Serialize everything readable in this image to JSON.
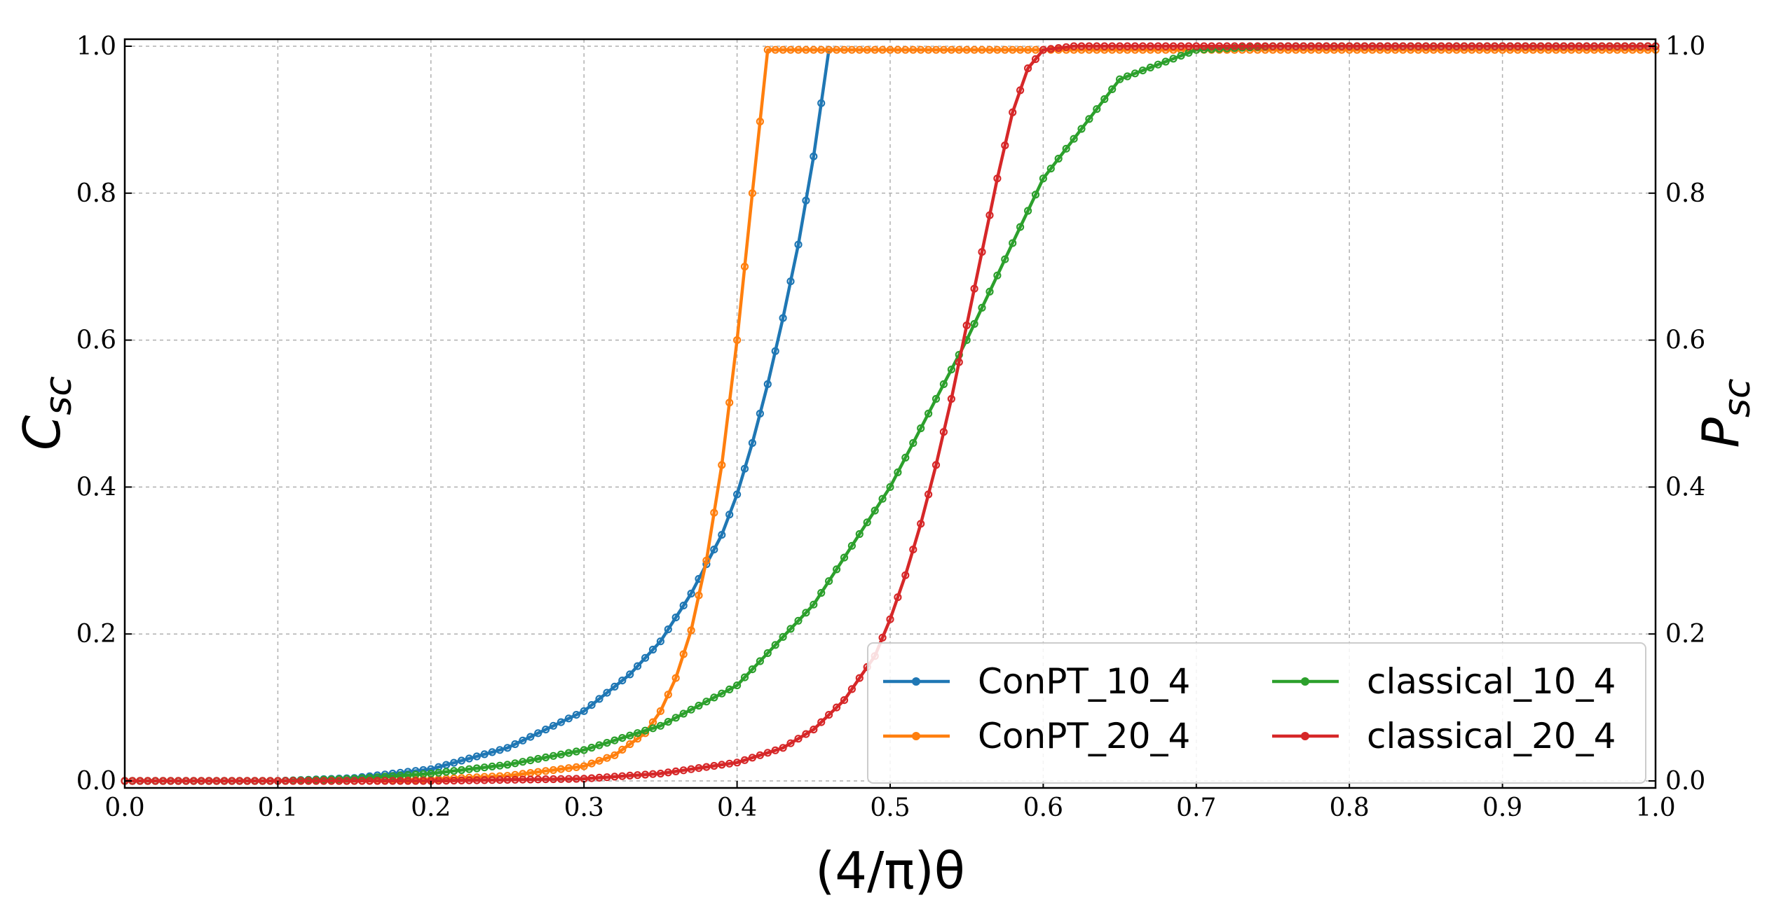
{
  "chart_data": {
    "type": "line",
    "xlabel": "(4/π)θ",
    "ylabel_left": "C_sc",
    "ylabel_right": "P_sc",
    "xlim": [
      0.0,
      1.0
    ],
    "ylim": [
      0.0,
      1.0
    ],
    "grid": true,
    "legend_placement": "bottom-right",
    "legend_columns": 2,
    "x_ticks": [
      "0.0",
      "0.1",
      "0.2",
      "0.3",
      "0.4",
      "0.5",
      "0.6",
      "0.7",
      "0.8",
      "0.9",
      "1.0"
    ],
    "y_ticks": [
      "0.0",
      "0.2",
      "0.4",
      "0.6",
      "0.8",
      "1.0"
    ],
    "y_ticks_right": [
      "0.0",
      "0.2",
      "0.4",
      "0.6",
      "0.8",
      "1.0"
    ],
    "series": [
      {
        "name": "ConPT_10_4",
        "color": "#1f77b4",
        "x": [
          0.0,
          0.1,
          0.15,
          0.2,
          0.25,
          0.3,
          0.33,
          0.35,
          0.37,
          0.39,
          0.4,
          0.41,
          0.42,
          0.43,
          0.44,
          0.45,
          0.46
        ],
        "y": [
          0.0,
          0.0,
          0.004,
          0.016,
          0.045,
          0.095,
          0.145,
          0.19,
          0.255,
          0.335,
          0.39,
          0.46,
          0.54,
          0.63,
          0.73,
          0.85,
          0.995
        ]
      },
      {
        "name": "ConPT_20_4",
        "color": "#ff7f0e",
        "x": [
          0.0,
          0.15,
          0.2,
          0.25,
          0.3,
          0.32,
          0.34,
          0.35,
          0.36,
          0.37,
          0.38,
          0.39,
          0.4,
          0.41,
          0.42,
          0.5,
          0.6,
          1.0
        ],
        "y": [
          0.0,
          0.0,
          0.002,
          0.007,
          0.02,
          0.035,
          0.065,
          0.095,
          0.14,
          0.205,
          0.3,
          0.43,
          0.6,
          0.8,
          0.995,
          0.995,
          0.995,
          0.995
        ]
      },
      {
        "name": "classical_10_4",
        "color": "#2ca02c",
        "x": [
          0.0,
          0.1,
          0.15,
          0.2,
          0.25,
          0.3,
          0.35,
          0.4,
          0.45,
          0.5,
          0.55,
          0.6,
          0.65,
          0.7,
          0.75,
          0.8,
          1.0
        ],
        "y": [
          0.0,
          0.0,
          0.003,
          0.01,
          0.022,
          0.042,
          0.075,
          0.13,
          0.24,
          0.4,
          0.6,
          0.82,
          0.955,
          0.995,
          1.0,
          1.0,
          1.0
        ]
      },
      {
        "name": "classical_20_4",
        "color": "#d62728",
        "x": [
          0.0,
          0.2,
          0.3,
          0.35,
          0.4,
          0.43,
          0.45,
          0.47,
          0.49,
          0.5,
          0.51,
          0.52,
          0.53,
          0.54,
          0.55,
          0.56,
          0.57,
          0.58,
          0.59,
          0.6,
          0.62,
          1.0
        ],
        "y": [
          0.0,
          0.0,
          0.003,
          0.01,
          0.025,
          0.045,
          0.07,
          0.11,
          0.17,
          0.22,
          0.28,
          0.35,
          0.43,
          0.52,
          0.62,
          0.72,
          0.82,
          0.91,
          0.97,
          0.995,
          1.0,
          1.0
        ]
      }
    ]
  }
}
